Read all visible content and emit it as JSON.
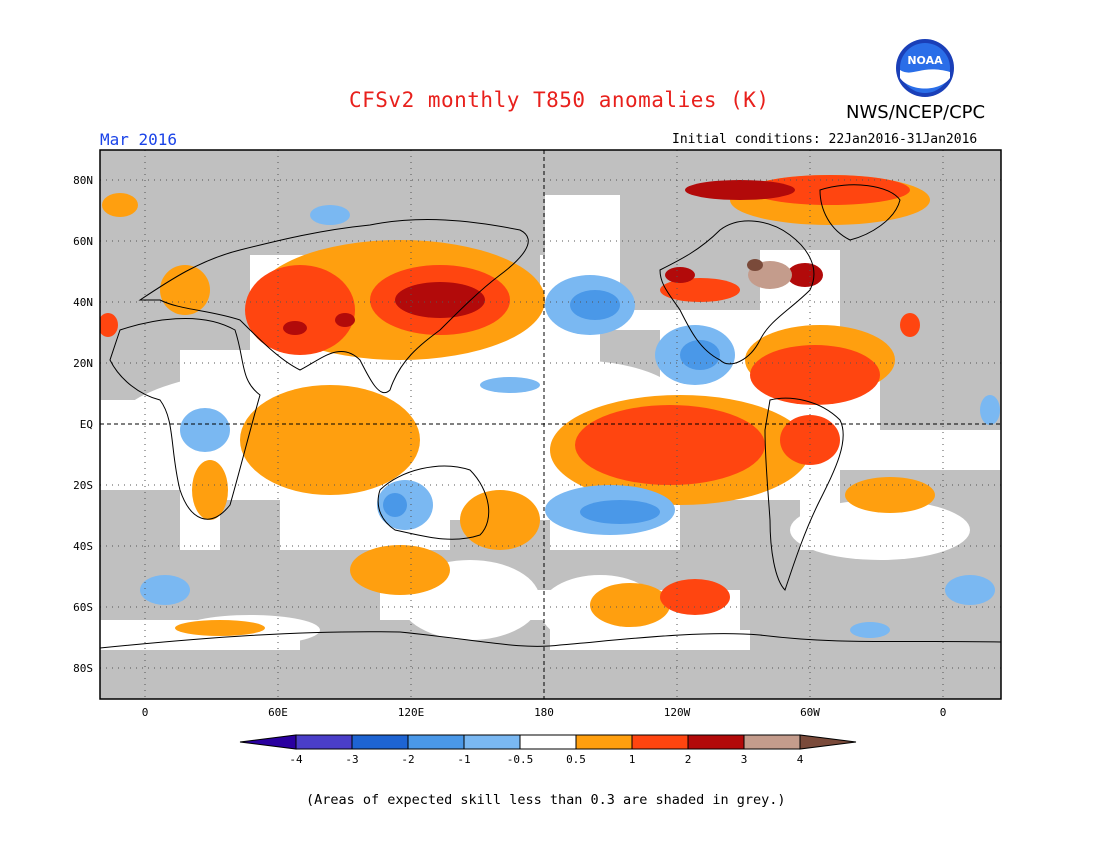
{
  "header": {
    "title": "CFSv2 monthly T850 anomalies (K)",
    "org": "NWS/NCEP/CPC",
    "logo_text": "NOAA",
    "month": "Mar 2016",
    "initial_conditions": "Initial conditions: 22Jan2016-31Jan2016"
  },
  "map": {
    "lat_labels": [
      "80N",
      "60N",
      "40N",
      "20N",
      "EQ",
      "20S",
      "40S",
      "60S",
      "80S"
    ],
    "lon_labels": [
      "0",
      "60E",
      "120E",
      "180",
      "120W",
      "60W",
      "0"
    ]
  },
  "colorbar": {
    "labels": [
      "-4",
      "-3",
      "-2",
      "-1",
      "-0.5",
      "0.5",
      "1",
      "2",
      "3",
      "4"
    ],
    "colors": [
      "#2a00a0",
      "#4a3ec8",
      "#1e64d2",
      "#4a98e8",
      "#7ab8f2",
      "#ffffff",
      "#ff9f0f",
      "#ff4510",
      "#b20a0a",
      "#c49c8c",
      "#7a4a3a"
    ]
  },
  "colors": {
    "land_mask_grey": "#c0c0c0",
    "title_red": "#e8201c",
    "month_blue": "#1a43e8"
  },
  "footer": {
    "note": "(Areas of expected skill less than 0.3 are shaded in grey.)"
  }
}
